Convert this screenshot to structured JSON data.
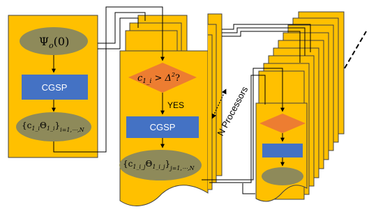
{
  "stage1": {
    "init_label": "Ψ",
    "init_sub": "o",
    "init_arg": "(0)",
    "process_label": "CGSP",
    "output_main": "{c",
    "output_sub1": "1_i",
    "output_theta": "Θ",
    "output_sub2": "1_i",
    "output_close": "}",
    "output_index": "i=1,⋯,N"
  },
  "stage2": {
    "cond_c": "c",
    "cond_sub": "1_i",
    "cond_rest": " > Δ",
    "cond_sup": "2",
    "cond_q": "?",
    "yes_label": "YES",
    "process_label": "CGSP",
    "output_main": "{c",
    "output_sub1": "1_i_j",
    "output_theta": "Θ",
    "output_sub2": "1_i_j",
    "output_close": "}",
    "output_index": "j=1,⋯,N"
  },
  "processors_label": "N Processors",
  "colors": {
    "sheet": "#FFC000",
    "sheet_border": "#404040",
    "ellipse": "#8E8A5A",
    "process": "#4472C4",
    "decision": "#ED7D31"
  }
}
